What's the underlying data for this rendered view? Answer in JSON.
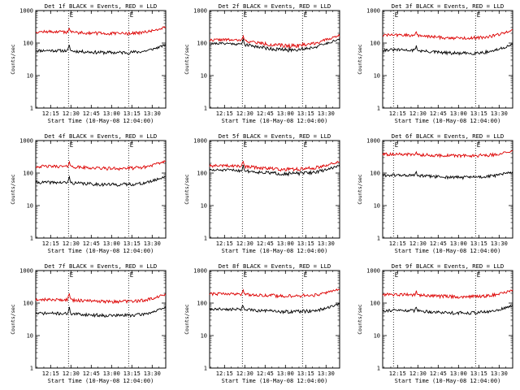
{
  "colors": {
    "events": "#000000",
    "lld": "#dd0000",
    "axis": "#000000",
    "background": "#ffffff"
  },
  "chart_data": [
    {
      "type": "line",
      "title": "Det 1f BLACK = Events, RED = LLD",
      "xlabel": "Start Time (10-May-08 12:04:00)",
      "ylabel": "Counts/sec",
      "xlim": [
        12.067,
        13.667
      ],
      "ylim": [
        1,
        1000
      ],
      "yscale": "log",
      "xticks": [
        "12:15",
        "12:30",
        "12:45",
        "13:00",
        "13:15",
        "13:30"
      ],
      "yticks": [
        "1",
        "10",
        "100",
        "1000"
      ],
      "markers": {
        "x": [
          12.47,
          13.21
        ],
        "labels": [
          "E",
          "E"
        ]
      },
      "series": [
        {
          "name": "Events",
          "color": "#000000",
          "base": 55,
          "amp": 0.15,
          "rise": 0.55,
          "spike": 0.45,
          "seed": 11
        },
        {
          "name": "LLD",
          "color": "#dd0000",
          "base": 210,
          "amp": 0.13,
          "rise": 0.45,
          "spike": 0.35,
          "seed": 12
        }
      ]
    },
    {
      "type": "line",
      "title": "Det 2f BLACK = Events, RED = LLD",
      "xlabel": "Start Time (10-May-08 12:04:00)",
      "ylabel": "Counts/sec",
      "xlim": [
        12.067,
        13.667
      ],
      "ylim": [
        1,
        1000
      ],
      "yscale": "log",
      "xticks": [
        "12:15",
        "12:30",
        "12:45",
        "13:00",
        "13:15",
        "13:30"
      ],
      "yticks": [
        "1",
        "10",
        "100",
        "1000"
      ],
      "markers": {
        "x": [
          12.47,
          13.21
        ],
        "labels": [
          "E",
          "E"
        ]
      },
      "series": [
        {
          "name": "Events",
          "color": "#000000",
          "base": 80,
          "amp": 0.45,
          "rise": 0.5,
          "spike": 0.5,
          "seed": 21
        },
        {
          "name": "LLD",
          "color": "#dd0000",
          "base": 105,
          "amp": 0.42,
          "rise": 0.5,
          "spike": 0.5,
          "seed": 22
        }
      ]
    },
    {
      "type": "line",
      "title": "Det 3f BLACK = Events, RED = LLD",
      "xlabel": "Start Time (10-May-08 12:04:00)",
      "ylabel": "Counts/sec",
      "xlim": [
        12.067,
        13.667
      ],
      "ylim": [
        1,
        1000
      ],
      "yscale": "log",
      "xticks": [
        "12:15",
        "12:30",
        "12:45",
        "13:00",
        "13:15",
        "13:30"
      ],
      "yticks": [
        "1",
        "10",
        "100",
        "1000"
      ],
      "markers": {
        "x": [
          12.2,
          13.21
        ],
        "labels": [
          "E",
          "E"
        ]
      },
      "series": [
        {
          "name": "Events",
          "color": "#000000",
          "base": 55,
          "amp": 0.25,
          "rise": 0.55,
          "spike": 0.4,
          "seed": 31
        },
        {
          "name": "LLD",
          "color": "#dd0000",
          "base": 160,
          "amp": 0.22,
          "rise": 0.5,
          "spike": 0.35,
          "seed": 32
        }
      ]
    },
    {
      "type": "line",
      "title": "Det 4f BLACK = Events, RED = LLD",
      "xlabel": "Start Time (10-May-08 12:04:00)",
      "ylabel": "Counts/sec",
      "xlim": [
        12.067,
        13.667
      ],
      "ylim": [
        1,
        1000
      ],
      "yscale": "log",
      "xticks": [
        "12:15",
        "12:30",
        "12:45",
        "13:00",
        "13:15",
        "13:30"
      ],
      "yticks": [
        "1",
        "10",
        "100",
        "1000"
      ],
      "markers": {
        "x": [
          12.47,
          13.21
        ],
        "labels": [
          "E",
          "E"
        ]
      },
      "series": [
        {
          "name": "Events",
          "color": "#000000",
          "base": 48,
          "amp": 0.15,
          "rise": 0.6,
          "spike": 0.5,
          "seed": 41
        },
        {
          "name": "LLD",
          "color": "#dd0000",
          "base": 150,
          "amp": 0.15,
          "rise": 0.5,
          "spike": 0.45,
          "seed": 42
        }
      ]
    },
    {
      "type": "line",
      "title": "Det 5f BLACK = Events, RED = LLD",
      "xlabel": "Start Time (10-May-08 12:04:00)",
      "ylabel": "Counts/sec",
      "xlim": [
        12.067,
        13.667
      ],
      "ylim": [
        1,
        1000
      ],
      "yscale": "log",
      "xticks": [
        "12:15",
        "12:30",
        "12:45",
        "13:00",
        "13:15",
        "13:30"
      ],
      "yticks": [
        "1",
        "10",
        "100",
        "1000"
      ],
      "markers": {
        "x": [
          12.47,
          13.21
        ],
        "labels": [
          "E",
          "E"
        ]
      },
      "series": [
        {
          "name": "Events",
          "color": "#000000",
          "base": 110,
          "amp": 0.25,
          "rise": 0.45,
          "spike": 0.45,
          "seed": 51
        },
        {
          "name": "LLD",
          "color": "#dd0000",
          "base": 150,
          "amp": 0.25,
          "rise": 0.45,
          "spike": 0.45,
          "seed": 52
        }
      ]
    },
    {
      "type": "line",
      "title": "Det 6f BLACK = Events, RED = LLD",
      "xlabel": "Start Time (10-May-08 12:04:00)",
      "ylabel": "Counts/sec",
      "xlim": [
        12.067,
        13.667
      ],
      "ylim": [
        1,
        1000
      ],
      "yscale": "log",
      "xticks": [
        "12:15",
        "12:30",
        "12:45",
        "13:00",
        "13:15",
        "13:30"
      ],
      "yticks": [
        "1",
        "10",
        "100",
        "1000"
      ],
      "markers": {
        "x": [
          12.2,
          13.21
        ],
        "labels": [
          "E",
          "E"
        ]
      },
      "series": [
        {
          "name": "Events",
          "color": "#000000",
          "base": 80,
          "amp": 0.15,
          "rise": 0.3,
          "spike": 0.25,
          "seed": 61
        },
        {
          "name": "LLD",
          "color": "#dd0000",
          "base": 360,
          "amp": 0.1,
          "rise": 0.25,
          "spike": 0.2,
          "seed": 62
        }
      ]
    },
    {
      "type": "line",
      "title": "Det 7f BLACK = Events, RED = LLD",
      "xlabel": "Start Time (10-May-08 12:04:00)",
      "ylabel": "Counts/sec",
      "xlim": [
        12.067,
        13.667
      ],
      "ylim": [
        1,
        1000
      ],
      "yscale": "log",
      "xticks": [
        "12:15",
        "12:30",
        "12:45",
        "13:00",
        "13:15",
        "13:30"
      ],
      "yticks": [
        "1",
        "10",
        "100",
        "1000"
      ],
      "markers": {
        "x": [
          12.47,
          13.21
        ],
        "labels": [
          "E",
          "E"
        ]
      },
      "series": [
        {
          "name": "Events",
          "color": "#000000",
          "base": 45,
          "amp": 0.15,
          "rise": 0.55,
          "spike": 0.55,
          "seed": 71
        },
        {
          "name": "LLD",
          "color": "#dd0000",
          "base": 120,
          "amp": 0.15,
          "rise": 0.5,
          "spike": 0.55,
          "seed": 72
        }
      ]
    },
    {
      "type": "line",
      "title": "Det 8f BLACK = Events, RED = LLD",
      "xlabel": "Start Time (10-May-08 12:04:00)",
      "ylabel": "Counts/sec",
      "xlim": [
        12.067,
        13.667
      ],
      "ylim": [
        1,
        1000
      ],
      "yscale": "log",
      "xticks": [
        "12:15",
        "12:30",
        "12:45",
        "13:00",
        "13:15",
        "13:30"
      ],
      "yticks": [
        "1",
        "10",
        "100",
        "1000"
      ],
      "markers": {
        "x": [
          12.47,
          13.21
        ],
        "labels": [
          "E",
          "E"
        ]
      },
      "series": [
        {
          "name": "Events",
          "color": "#000000",
          "base": 60,
          "amp": 0.18,
          "rise": 0.5,
          "spike": 0.4,
          "seed": 81
        },
        {
          "name": "LLD",
          "color": "#dd0000",
          "base": 180,
          "amp": 0.15,
          "rise": 0.45,
          "spike": 0.35,
          "seed": 82
        }
      ]
    },
    {
      "type": "line",
      "title": "Det 9f BLACK = Events, RED = LLD",
      "xlabel": "Start Time (10-May-08 12:04:00)",
      "ylabel": "Counts/sec",
      "xlim": [
        12.067,
        13.667
      ],
      "ylim": [
        1,
        1000
      ],
      "yscale": "log",
      "xticks": [
        "12:15",
        "12:30",
        "12:45",
        "13:00",
        "13:15",
        "13:30"
      ],
      "yticks": [
        "1",
        "10",
        "100",
        "1000"
      ],
      "markers": {
        "x": [
          12.2,
          13.21
        ],
        "labels": [
          "E",
          "E"
        ]
      },
      "series": [
        {
          "name": "Events",
          "color": "#000000",
          "base": 55,
          "amp": 0.18,
          "rise": 0.45,
          "spike": 0.4,
          "seed": 91
        },
        {
          "name": "LLD",
          "color": "#dd0000",
          "base": 170,
          "amp": 0.15,
          "rise": 0.4,
          "spike": 0.35,
          "seed": 92
        }
      ]
    }
  ]
}
